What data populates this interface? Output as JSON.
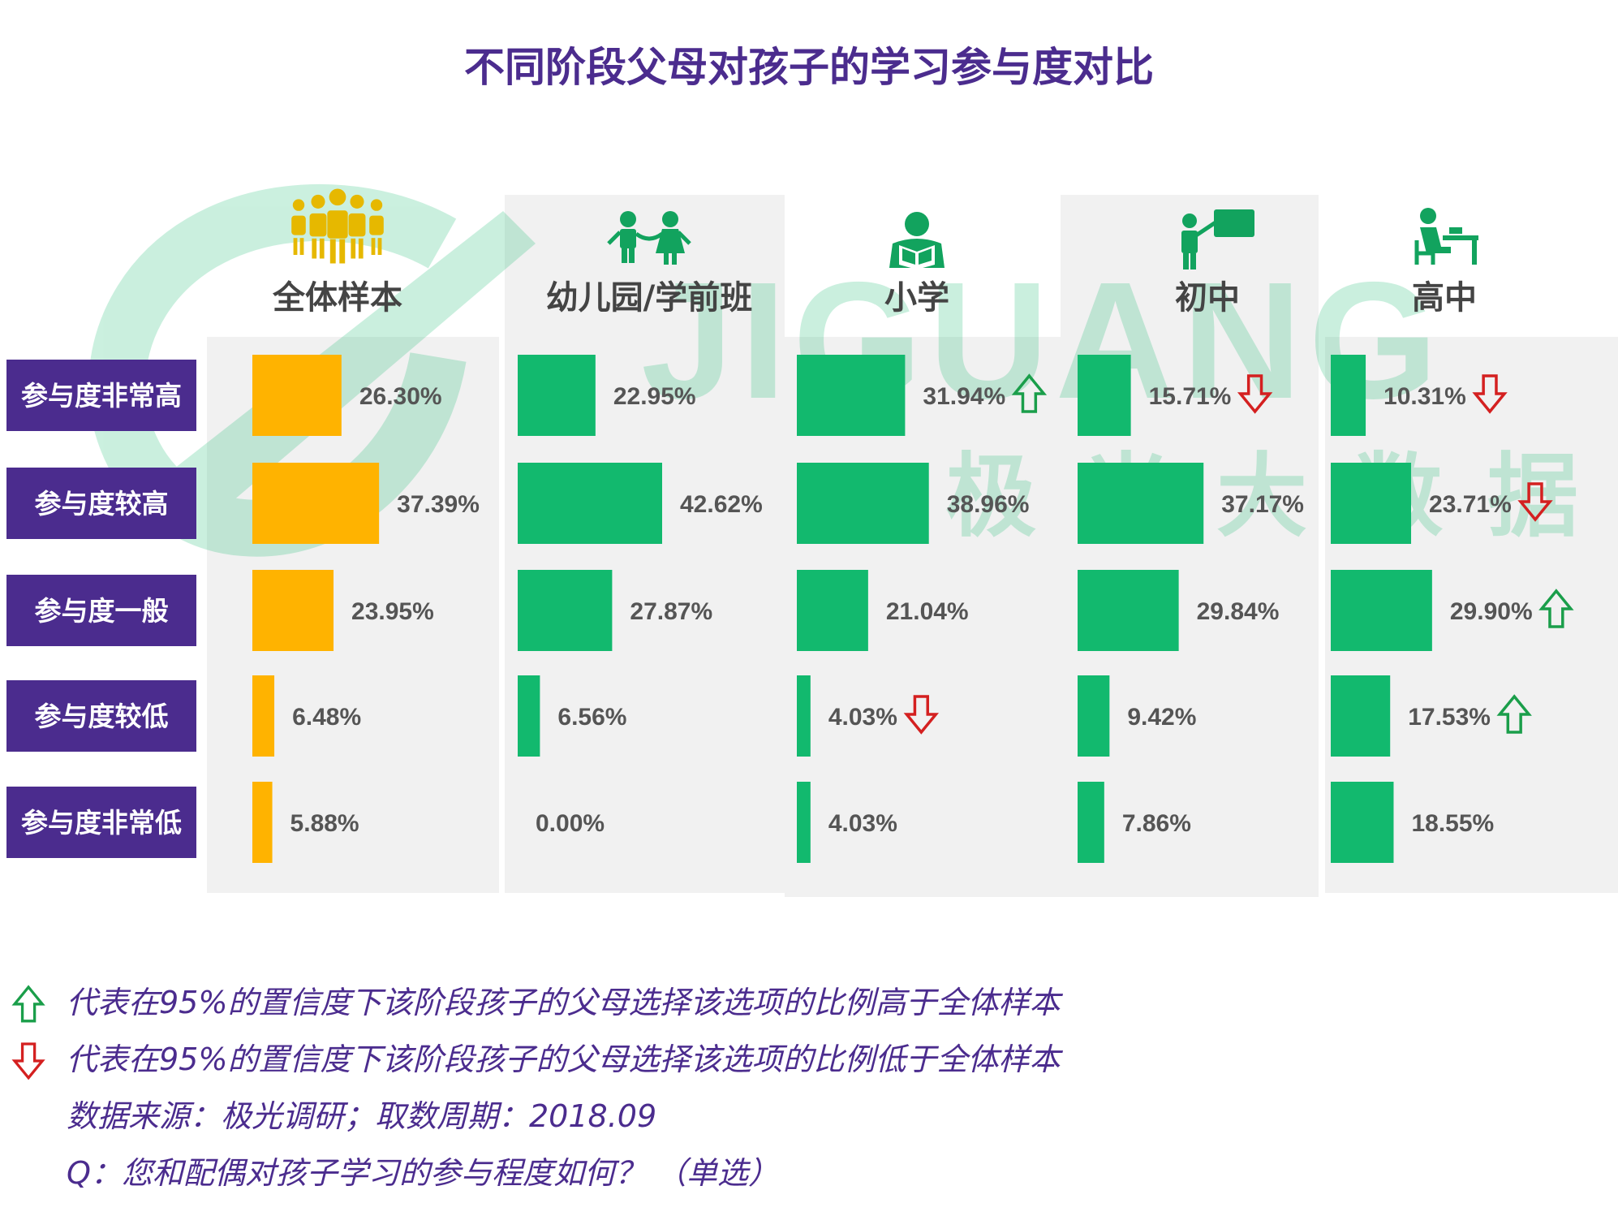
{
  "chart_data": {
    "type": "bar",
    "title": "不同阶段父母对孩子的学习参与度对比",
    "categories": [
      "参与度非常高",
      "参与度较高",
      "参与度一般",
      "参与度较低",
      "参与度非常低"
    ],
    "series": [
      {
        "name": "全体样本",
        "icon": "people-group-icon",
        "color": "#FFB300",
        "values": [
          26.3,
          37.39,
          23.95,
          6.48,
          5.88
        ],
        "labels": [
          "26.30%",
          "37.39%",
          "23.95%",
          "6.48%",
          "5.88%"
        ],
        "markers": [
          "",
          "",
          "",
          "",
          ""
        ]
      },
      {
        "name": "幼儿园/学前班",
        "icon": "children-icon",
        "color": "#12B96E",
        "values": [
          22.95,
          42.62,
          27.87,
          6.56,
          0.0
        ],
        "labels": [
          "22.95%",
          "42.62%",
          "27.87%",
          "6.56%",
          "0.00%"
        ],
        "markers": [
          "",
          "",
          "",
          "",
          ""
        ]
      },
      {
        "name": "小学",
        "icon": "reading-student-icon",
        "color": "#12B96E",
        "values": [
          31.94,
          38.96,
          21.04,
          4.03,
          4.03
        ],
        "labels": [
          "31.94%",
          "38.96%",
          "21.04%",
          "4.03%",
          "4.03%"
        ],
        "markers": [
          "up",
          "",
          "",
          "down",
          ""
        ]
      },
      {
        "name": "初中",
        "icon": "teacher-board-icon",
        "color": "#12B96E",
        "values": [
          15.71,
          37.17,
          29.84,
          9.42,
          7.86
        ],
        "labels": [
          "15.71%",
          "37.17%",
          "29.84%",
          "9.42%",
          "7.86%"
        ],
        "markers": [
          "down",
          "",
          "",
          "",
          ""
        ]
      },
      {
        "name": "高中",
        "icon": "desk-student-icon",
        "color": "#12B96E",
        "values": [
          10.31,
          23.71,
          29.9,
          17.53,
          18.55
        ],
        "labels": [
          "10.31%",
          "23.71%",
          "29.90%",
          "17.53%",
          "18.55%"
        ],
        "markers": [
          "down",
          "down",
          "up",
          "up",
          ""
        ]
      }
    ],
    "xlim": [
      0,
      45
    ],
    "legend": [
      {
        "marker": "up",
        "text": "代表在95%的置信度下该阶段孩子的父母选择该选项的比例高于全体样本"
      },
      {
        "marker": "down",
        "text": "代表在95%的置信度下该阶段孩子的父母选择该选项的比例低于全体样本"
      }
    ],
    "source": "数据来源：极光调研；取数周期：2018.09",
    "question": "Q：您和配偶对孩子学习的参与程度如何？ （单选）",
    "watermark": {
      "brand": "JIGUANG",
      "tagline": "极光大数据"
    }
  },
  "colors": {
    "title": "#4B2C8E",
    "label_bg": "#4B2C8E",
    "label_text": "#FFFFFF",
    "col_bg": "#F1F1F1",
    "value_text": "#555555",
    "up": "#1A9E4A",
    "down": "#D42020",
    "note": "#4B2C8E",
    "icon_gold": "#E6B800",
    "icon_green": "#12A35E"
  }
}
